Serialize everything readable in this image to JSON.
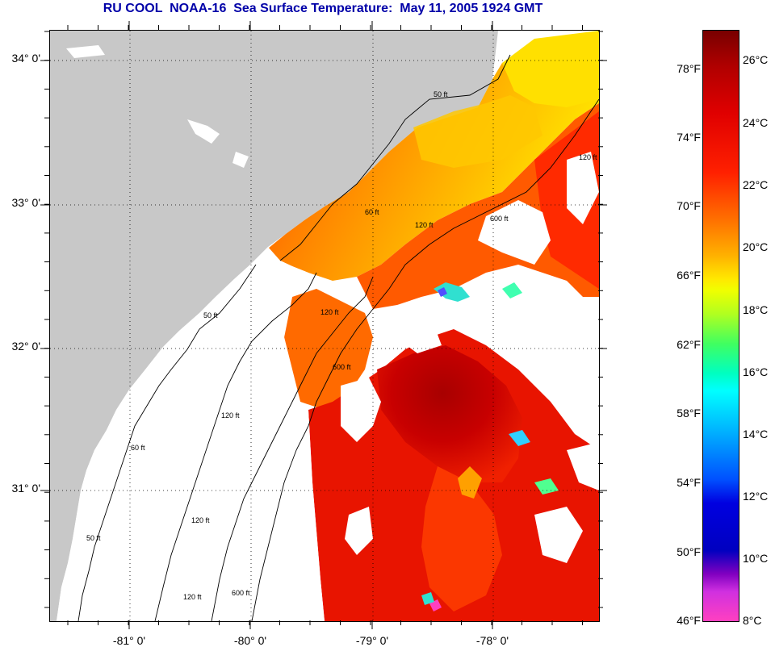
{
  "title": "RU COOL  NOAA-16  Sea Surface Temperature:  May 11, 2005 1924 GMT",
  "map": {
    "latitude_labels": [
      "34° 0'",
      "33° 0'",
      "32° 0'",
      "31° 0'"
    ],
    "longitude_labels": [
      "-81° 0'",
      "-80° 0'",
      "-79° 0'",
      "-78° 0'"
    ],
    "isobath_labels": [
      "50 ft",
      "60 ft",
      "120 ft",
      "600 ft",
      "120 ft",
      "50 ft",
      "60 ft",
      "120 ft",
      "120 ft",
      "600 ft",
      "50 ft",
      "120 ft",
      "120 ft",
      "600 ft"
    ],
    "colors": {
      "land": "#c8c8c8",
      "cloud": "#ffffff",
      "contour": "#000000",
      "grid": "#000000"
    }
  },
  "colorbar": {
    "fahrenheit_labels": [
      "78°F",
      "74°F",
      "70°F",
      "66°F",
      "62°F",
      "58°F",
      "54°F",
      "50°F",
      "46°F"
    ],
    "celsius_labels": [
      "26°C",
      "24°C",
      "22°C",
      "20°C",
      "18°C",
      "16°C",
      "14°C",
      "12°C",
      "10°C",
      "8°C"
    ]
  }
}
